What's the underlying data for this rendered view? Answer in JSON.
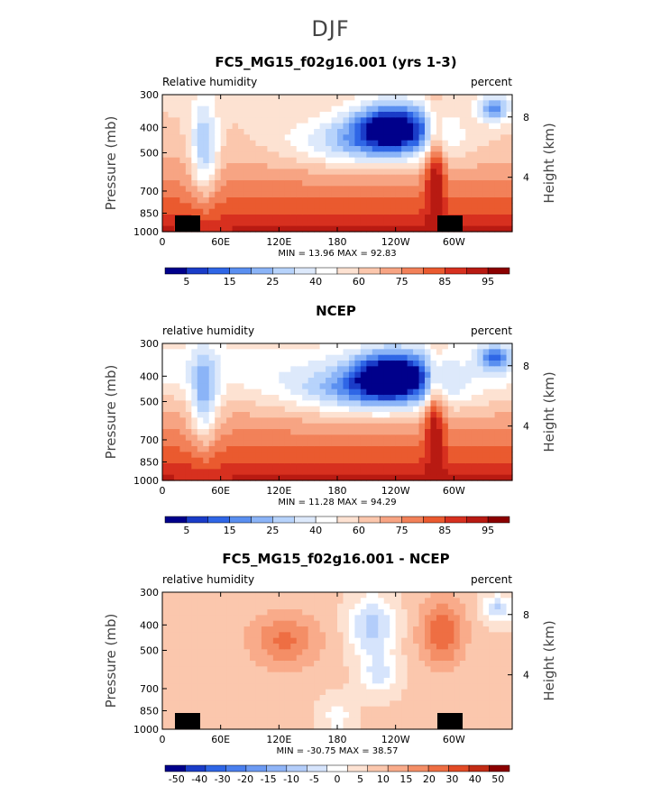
{
  "figure": {
    "title": "DJF"
  },
  "colors": {
    "rh_levels": [
      "#00008b",
      "#1a3cc8",
      "#2f66e6",
      "#5a8ff0",
      "#8bb4f7",
      "#b7d3fb",
      "#dde9fb",
      "#ffffff",
      "#fde2d2",
      "#fbc7ad",
      "#f7a483",
      "#f28159",
      "#ea5a2f",
      "#d7301f",
      "#b81a12",
      "#8b0000"
    ],
    "diff_levels": [
      "#00008b",
      "#1a3cc8",
      "#2f66e6",
      "#4a7fee",
      "#6c9af3",
      "#8fb4f7",
      "#b3cdfa",
      "#d6e4fc",
      "#ffffff",
      "#fde2d2",
      "#fbc7ad",
      "#f9ab8a",
      "#f48e66",
      "#ee6e43",
      "#e24b26",
      "#c22c15",
      "#8b0000"
    ]
  },
  "chart_data": [
    {
      "type": "heatmap",
      "title": "FC5_MG15_f02g16.001 (yrs 1-3)",
      "left_label": "Relative humidity",
      "right_label": "percent",
      "ylabel": "Pressure (mb)",
      "ylabel_right": "Height (km)",
      "x_ticks": [
        "0",
        "60E",
        "120E",
        "180",
        "120W",
        "60W"
      ],
      "y_ticks": [
        "300",
        "400",
        "500",
        "700",
        "850",
        "1000"
      ],
      "height_ticks": [
        "8",
        "4"
      ],
      "minmax": "MIN =   13.96   MAX =   92.83",
      "colorbar_labels": [
        "5",
        "15",
        "25",
        "40",
        "60",
        "75",
        "85",
        "95"
      ],
      "scale": "rh"
    },
    {
      "type": "heatmap",
      "title": "NCEP",
      "left_label": "relative humidity",
      "right_label": "percent",
      "ylabel": "Pressure (mb)",
      "ylabel_right": "Height (km)",
      "x_ticks": [
        "0",
        "60E",
        "120E",
        "180",
        "120W",
        "60W"
      ],
      "y_ticks": [
        "300",
        "400",
        "500",
        "700",
        "850",
        "1000"
      ],
      "height_ticks": [
        "8",
        "4"
      ],
      "minmax": "MIN =   11.28   MAX =   94.29",
      "colorbar_labels": [
        "5",
        "15",
        "25",
        "40",
        "60",
        "75",
        "85",
        "95"
      ],
      "scale": "rh"
    },
    {
      "type": "heatmap",
      "title": "FC5_MG15_f02g16.001 - NCEP",
      "left_label": "relative humidity",
      "right_label": "percent",
      "ylabel": "Pressure (mb)",
      "ylabel_right": "Height (km)",
      "x_ticks": [
        "0",
        "60E",
        "120E",
        "180",
        "120W",
        "60W"
      ],
      "y_ticks": [
        "300",
        "400",
        "500",
        "700",
        "850",
        "1000"
      ],
      "height_ticks": [
        "8",
        "4"
      ],
      "minmax": "MIN =  -30.75   MAX =   38.57",
      "colorbar_labels": [
        "-50",
        "-40",
        "-30",
        "-20",
        "-15",
        "-10",
        "-5",
        "0",
        "5",
        "10",
        "15",
        "20",
        "30",
        "40",
        "50"
      ],
      "scale": "diff"
    }
  ]
}
